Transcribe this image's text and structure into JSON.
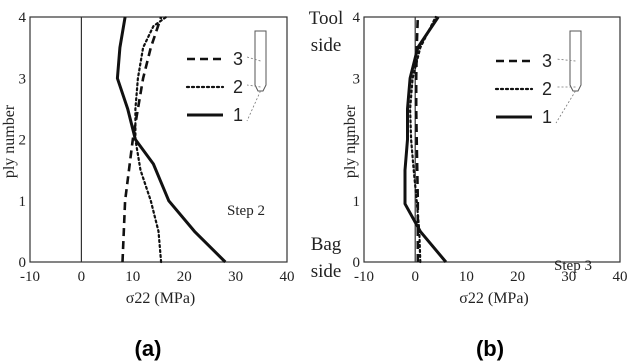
{
  "chart_data": [
    {
      "type": "line",
      "panel_label": "(a)",
      "annotation": "Step 2",
      "xlabel": "σ22 (MPa)",
      "ylabel": "ply number",
      "xlim": [
        -10,
        40
      ],
      "ylim": [
        0,
        4
      ],
      "xticks": [
        "-10",
        "0",
        "10",
        "20",
        "30",
        "40"
      ],
      "yticks": [
        "0",
        "1",
        "2",
        "3",
        "4"
      ],
      "grid": false,
      "legend": "top-right",
      "series": [
        {
          "name": "3",
          "style": "dashed",
          "x": [
            8,
            8.5,
            10,
            11,
            12,
            13.5,
            15.5
          ],
          "y": [
            0,
            1,
            2,
            2.5,
            3,
            3.5,
            4
          ]
        },
        {
          "name": "2",
          "style": "dotted",
          "x": [
            15.5,
            15,
            13.5,
            11.5,
            10.5,
            10.5,
            11,
            12,
            14,
            16.5
          ],
          "y": [
            0,
            0.5,
            1,
            1.5,
            2,
            2.5,
            3,
            3.5,
            3.85,
            4
          ]
        },
        {
          "name": "1",
          "style": "solid",
          "x": [
            28,
            22,
            17,
            15.5,
            14,
            10.5,
            9,
            7,
            7.5,
            8.5
          ],
          "y": [
            0,
            0.5,
            1,
            1.3,
            1.6,
            2,
            2.5,
            3,
            3.5,
            4
          ]
        }
      ]
    },
    {
      "type": "line",
      "panel_label": "(b)",
      "annotation": "Step 3",
      "xlabel": "σ22 (MPa)",
      "ylabel": "ply number",
      "side_top": [
        "Tool",
        "side"
      ],
      "side_bottom": [
        "Bag",
        "side"
      ],
      "xlim": [
        -10,
        40
      ],
      "ylim": [
        0,
        4
      ],
      "xticks": [
        "-10",
        "0",
        "10",
        "20",
        "30",
        "40"
      ],
      "yticks": [
        "0",
        "1",
        "2",
        "3",
        "4"
      ],
      "grid": false,
      "legend": "top-right",
      "series": [
        {
          "name": "3",
          "style": "dashed",
          "x": [
            0.5,
            0.5,
            0.3,
            0.2,
            0.2,
            0.3,
            0.5
          ],
          "y": [
            0,
            1,
            2,
            2.5,
            3,
            3.5,
            4
          ]
        },
        {
          "name": "2",
          "style": "dotted",
          "x": [
            1,
            0.8,
            0.3,
            -0.3,
            -0.8,
            -1,
            -0.5,
            1,
            4
          ],
          "y": [
            0,
            0.5,
            1,
            1.5,
            2,
            2.5,
            3,
            3.5,
            4
          ]
        },
        {
          "name": "1",
          "style": "solid",
          "x": [
            6,
            1,
            -2,
            -2,
            -1.5,
            -1.5,
            -1,
            0.5,
            4.5
          ],
          "y": [
            0,
            0.5,
            0.95,
            1.5,
            2,
            2.5,
            3,
            3.5,
            4
          ]
        }
      ]
    }
  ]
}
